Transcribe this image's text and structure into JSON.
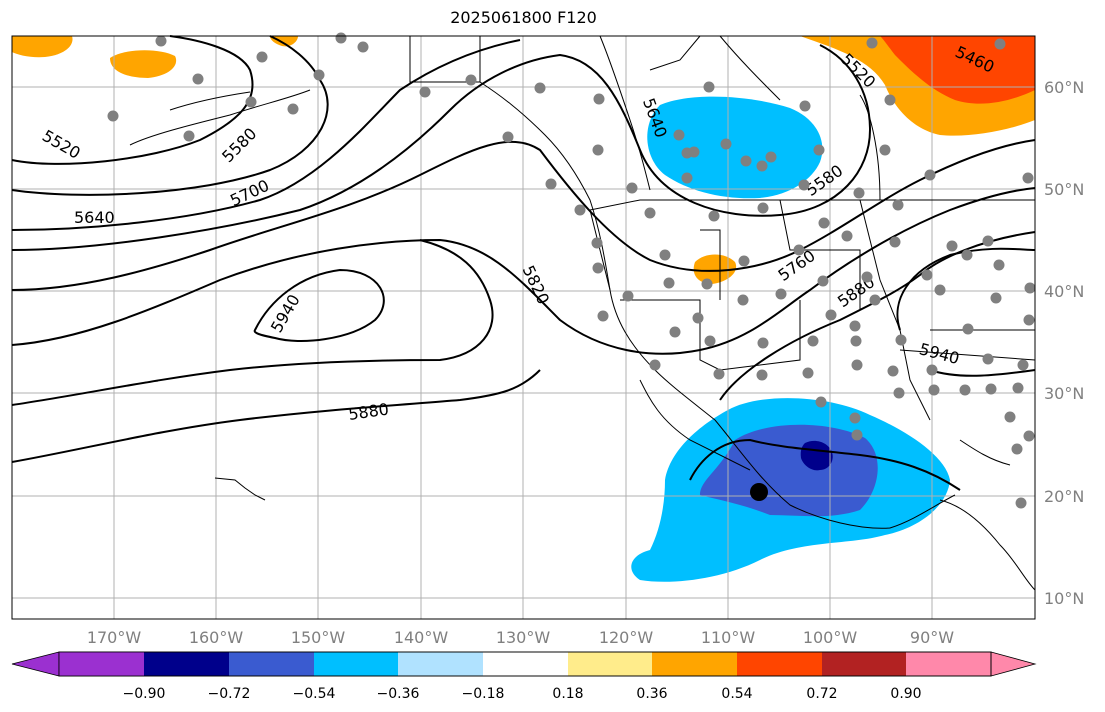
{
  "title": "2025061800 F120",
  "lon_labels": [
    "170°W",
    "160°W",
    "150°W",
    "140°W",
    "130°W",
    "120°W",
    "110°W",
    "100°W",
    "90°W"
  ],
  "lat_labels": [
    "60°N",
    "50°N",
    "40°N",
    "30°N",
    "20°N",
    "10°N"
  ],
  "contour_labels": [
    "5520",
    "5580",
    "5640",
    "5700",
    "5940",
    "5880",
    "5820",
    "5640",
    "5520",
    "5460",
    "5580",
    "5760",
    "5880",
    "5940"
  ],
  "colorbar": {
    "ticks": [
      "−0.90",
      "−0.72",
      "−0.54",
      "−0.36",
      "−0.18",
      "0.18",
      "0.36",
      "0.54",
      "0.72",
      "0.90"
    ],
    "colors": [
      "#9b30d0",
      "#00008b",
      "#3a5bd0",
      "#00bfff",
      "#b0e2ff",
      "#ffffff",
      "#ffec8b",
      "#ffa500",
      "#ff4500",
      "#b22222",
      "#ff88aa"
    ]
  },
  "colors": {
    "ocean_border": "#000000",
    "grid": "#b0b0b0",
    "station": "#808080"
  }
}
